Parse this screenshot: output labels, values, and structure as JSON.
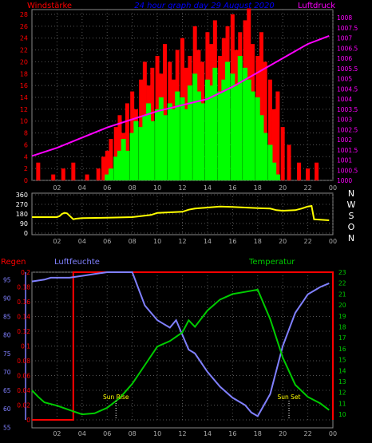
{
  "header": {
    "left_label": "Windstärke",
    "title": "24 hour graph day 29 August 2020",
    "right_label": "Luftdruck"
  },
  "colors": {
    "wind": "#ff0000",
    "wind_speed": "#00ff00",
    "pressure": "#ff00ff",
    "direction": "#ffff00",
    "humidity": "#8080ff",
    "temperature": "#00cc00",
    "rain": "#ff0000",
    "title": "#0000ff",
    "axis_text": "#ffffff"
  },
  "chart_data": [
    {
      "type": "bar",
      "title": "24 hour graph day 29 August 2020",
      "x_ticks": [
        "02",
        "04",
        "06",
        "08",
        "10",
        "12",
        "14",
        "16",
        "18",
        "20",
        "22",
        "00"
      ],
      "y_left": {
        "label": "Windstärke",
        "ticks": [
          0,
          2,
          4,
          6,
          8,
          10,
          12,
          14,
          16,
          18,
          20,
          22,
          24,
          26,
          28
        ],
        "range": [
          0,
          28
        ]
      },
      "y_right": {
        "label": "Luftdruck",
        "ticks": [
          "1000",
          "1000.5",
          "1001",
          "1001.5",
          "1002",
          "1002.5",
          "1003",
          "1003.5",
          "1004",
          "1004.5",
          "1005",
          "1005.5",
          "1006",
          "1006.5",
          "1007",
          "1007.5",
          "1008"
        ],
        "range": [
          1000,
          1008
        ]
      },
      "series": [
        {
          "kind": "gust",
          "x": [
            0.5,
            1.7,
            2.5,
            3.3,
            4.4,
            5.3,
            5.7,
            6.0,
            6.3,
            6.7,
            7.0,
            7.3,
            7.6,
            8.0,
            8.3,
            8.7,
            9.0,
            9.3,
            9.6,
            10.0,
            10.3,
            10.6,
            11.0,
            11.3,
            11.6,
            12.0,
            12.3,
            12.6,
            13.0,
            13.3,
            13.6,
            14.0,
            14.3,
            14.6,
            15.0,
            15.3,
            15.6,
            16.0,
            16.3,
            16.6,
            17.0,
            17.3,
            17.6,
            18.0,
            18.3,
            18.6,
            19.0,
            19.3,
            19.6,
            20.0,
            20.5,
            21.3,
            22.0,
            22.7
          ],
          "values": [
            3,
            1,
            2,
            3,
            1,
            2,
            4,
            5,
            7,
            9,
            11,
            8,
            13,
            15,
            12,
            17,
            20,
            16,
            19,
            21,
            18,
            23,
            20,
            17,
            22,
            24,
            19,
            21,
            26,
            22,
            20,
            25,
            23,
            27,
            21,
            24,
            26,
            28,
            22,
            25,
            27,
            29,
            23,
            21,
            25,
            20,
            17,
            12,
            15,
            9,
            6,
            3,
            2,
            3
          ]
        },
        {
          "kind": "average",
          "x": [
            6.0,
            6.3,
            6.7,
            7.0,
            7.3,
            7.6,
            8.0,
            8.3,
            8.7,
            9.0,
            9.3,
            9.6,
            10.0,
            10.3,
            10.6,
            11.0,
            11.3,
            11.6,
            12.0,
            12.3,
            12.6,
            13.0,
            13.3,
            13.6,
            14.0,
            14.3,
            14.6,
            15.0,
            15.3,
            15.6,
            16.0,
            16.3,
            16.6,
            17.0,
            17.3,
            17.6,
            18.0,
            18.3,
            18.6,
            19.0,
            19.3,
            19.6
          ],
          "values": [
            1,
            2,
            4,
            5,
            7,
            5,
            8,
            10,
            9,
            11,
            13,
            10,
            12,
            14,
            11,
            13,
            12,
            15,
            14,
            12,
            16,
            18,
            15,
            13,
            17,
            16,
            19,
            15,
            17,
            20,
            18,
            16,
            21,
            19,
            17,
            15,
            14,
            11,
            8,
            6,
            3,
            1
          ]
        },
        {
          "kind": "pressure",
          "x": [
            0,
            2,
            4,
            6,
            8,
            10,
            12,
            14,
            16,
            18,
            20,
            22,
            23.7
          ],
          "values": [
            1001.2,
            1001.6,
            1002.1,
            1002.6,
            1003.0,
            1003.4,
            1003.7,
            1004.0,
            1004.6,
            1005.3,
            1006.0,
            1006.7,
            1007.1
          ]
        }
      ]
    },
    {
      "type": "line",
      "x_ticks": [
        "02",
        "04",
        "06",
        "08",
        "10",
        "12",
        "14",
        "16",
        "18",
        "20",
        "22",
        "00"
      ],
      "y_left": {
        "ticks": [
          0,
          90,
          180,
          270,
          360
        ],
        "range": [
          0,
          360
        ]
      },
      "y_right": {
        "ticks": [
          "N",
          "W",
          "S",
          "O",
          "N"
        ]
      },
      "series": [
        {
          "name": "Wind direction",
          "x": [
            0,
            2.0,
            2.2,
            2.4,
            2.6,
            2.8,
            3.3,
            3.5,
            4.0,
            6.0,
            8.0,
            9.5,
            10.0,
            12.0,
            12.5,
            13.0,
            14.0,
            15.0,
            16.0,
            17.0,
            18.0,
            19.0,
            19.5,
            20.0,
            21.0,
            21.5,
            22.0,
            22.3,
            22.5,
            23.0,
            23.7
          ],
          "values": [
            150,
            150,
            160,
            180,
            190,
            185,
            130,
            135,
            140,
            145,
            150,
            170,
            190,
            200,
            220,
            230,
            240,
            250,
            245,
            240,
            235,
            230,
            215,
            210,
            215,
            230,
            250,
            255,
            130,
            125,
            120
          ]
        }
      ]
    },
    {
      "type": "line",
      "x_ticks": [
        "02",
        "04",
        "06",
        "08",
        "10",
        "12",
        "14",
        "16",
        "18",
        "20",
        "22",
        "00"
      ],
      "labels": {
        "rain": "Regen",
        "humidity": "Luftfeuchte",
        "temperature": "Temperatur"
      },
      "y_rain": {
        "ticks": [
          "0",
          "0.02",
          "0.04",
          "0.06",
          "0.08",
          "0.1",
          "0.12",
          "0.14",
          "0.16",
          "0.18",
          "0.2"
        ],
        "range": [
          0,
          0.2
        ]
      },
      "y_humidity": {
        "ticks": [
          55,
          60,
          65,
          70,
          75,
          80,
          85,
          90,
          95
        ],
        "range": [
          57,
          97
        ]
      },
      "y_temperature": {
        "ticks": [
          10,
          11,
          12,
          13,
          14,
          15,
          16,
          17,
          18,
          19,
          20,
          21,
          22,
          23
        ],
        "range": [
          9.5,
          23
        ]
      },
      "annotations": [
        {
          "label": "Sun Rise",
          "x": 6.7
        },
        {
          "label": "Sun Set",
          "x": 20.5
        }
      ],
      "series": [
        {
          "name": "Regen",
          "x": [
            0,
            3.3,
            3.3,
            24.0,
            24.0
          ],
          "values": [
            0,
            0,
            0.2,
            0.2,
            0
          ]
        },
        {
          "name": "Luftfeuchte",
          "x": [
            0,
            1.0,
            1.5,
            2.0,
            3.0,
            4.0,
            5.0,
            6.0,
            7.0,
            8.0,
            9.0,
            9.5,
            10.0,
            10.5,
            11.0,
            11.5,
            12.0,
            12.5,
            13.0,
            14.0,
            15.0,
            16.0,
            17.0,
            17.5,
            18.0,
            19.0,
            20.0,
            21.0,
            22.0,
            23.0,
            23.7
          ],
          "values": [
            94.5,
            95,
            95.5,
            95.5,
            95.5,
            96,
            96.5,
            97,
            97,
            97,
            88,
            86,
            84,
            83,
            82,
            84,
            80,
            76,
            75,
            70,
            66,
            63,
            61,
            59,
            58,
            64,
            77,
            86,
            91,
            93,
            94
          ]
        },
        {
          "name": "Temperatur",
          "x": [
            0,
            0.5,
            1.0,
            2.0,
            3.0,
            4.0,
            5.0,
            6.0,
            7.0,
            8.0,
            9.0,
            10.0,
            11.0,
            12.0,
            12.5,
            13.0,
            14.0,
            15.0,
            16.0,
            17.0,
            18.0,
            19.0,
            20.0,
            21.0,
            22.0,
            23.0,
            23.7
          ],
          "values": [
            12.2,
            11.6,
            11.1,
            10.8,
            10.4,
            10.0,
            10.1,
            10.6,
            11.5,
            12.8,
            14.5,
            16.2,
            16.7,
            17.5,
            18.6,
            18.0,
            19.5,
            20.5,
            21.0,
            21.2,
            21.4,
            18.7,
            15.2,
            12.7,
            11.6,
            11.0,
            10.4
          ]
        }
      ]
    }
  ]
}
